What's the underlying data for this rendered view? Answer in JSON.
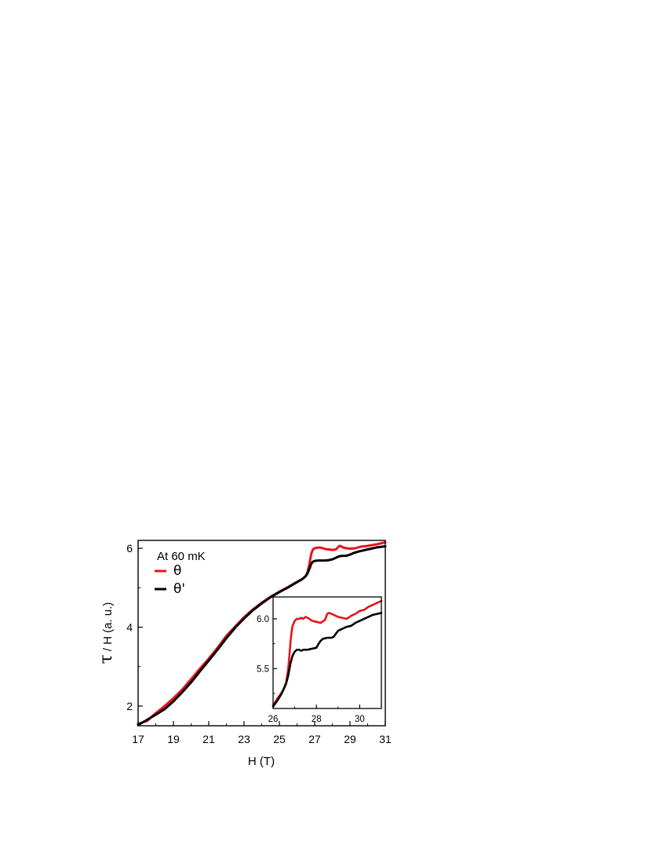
{
  "chart_data": [
    {
      "type": "line",
      "xlabel": "H (T)",
      "ylabel_symbol": "τ",
      "ylabel_rest": " / H (a. u.)",
      "xlim": [
        17,
        31
      ],
      "ylim": [
        1.5,
        6.2
      ],
      "xticks": [
        "17",
        "19",
        "21",
        "23",
        "25",
        "27",
        "29",
        "31"
      ],
      "xtick_values": [
        17,
        19,
        21,
        23,
        25,
        27,
        29,
        31
      ],
      "yticks": [
        "2",
        "4",
        "6"
      ],
      "ytick_values": [
        2,
        4,
        6
      ],
      "annotation": "At 60 mK",
      "legend_placement": "top-left",
      "series": [
        {
          "name": "θ",
          "color": "#e8141c",
          "x": [
            17.0,
            17.5,
            18.0,
            18.5,
            19.0,
            19.5,
            20.0,
            20.5,
            21.0,
            21.5,
            22.0,
            22.5,
            23.0,
            23.5,
            24.0,
            24.5,
            25.0,
            25.5,
            26.0,
            26.3,
            26.5,
            26.6,
            26.7,
            26.8,
            26.9,
            27.0,
            27.2,
            27.4,
            27.6,
            27.8,
            28.0,
            28.2,
            28.4,
            28.5,
            28.6,
            28.8,
            29.0,
            29.3,
            29.6,
            30.0,
            30.5,
            31.0
          ],
          "y": [
            1.55,
            1.62,
            1.82,
            2.0,
            2.2,
            2.42,
            2.68,
            2.95,
            3.2,
            3.48,
            3.78,
            4.02,
            4.25,
            4.45,
            4.62,
            4.77,
            4.9,
            5.02,
            5.15,
            5.22,
            5.3,
            5.4,
            5.6,
            5.85,
            5.97,
            6.0,
            6.02,
            6.01,
            5.98,
            5.97,
            5.96,
            5.97,
            6.06,
            6.05,
            6.02,
            6.0,
            5.99,
            6.0,
            6.04,
            6.06,
            6.1,
            6.15
          ]
        },
        {
          "name": "θ'",
          "color": "#000000",
          "x": [
            17.0,
            17.5,
            18.0,
            18.5,
            19.0,
            19.5,
            20.0,
            20.5,
            21.0,
            21.5,
            22.0,
            22.5,
            23.0,
            23.5,
            24.0,
            24.5,
            25.0,
            25.5,
            26.0,
            26.3,
            26.5,
            26.6,
            26.7,
            26.8,
            26.9,
            27.0,
            27.2,
            27.4,
            27.6,
            27.8,
            28.0,
            28.2,
            28.4,
            28.6,
            28.8,
            29.0,
            29.2,
            29.5,
            30.0,
            30.5,
            31.0
          ],
          "y": [
            1.52,
            1.65,
            1.78,
            1.92,
            2.12,
            2.35,
            2.6,
            2.88,
            3.15,
            3.43,
            3.72,
            3.99,
            4.22,
            4.43,
            4.6,
            4.76,
            4.89,
            5.01,
            5.14,
            5.22,
            5.3,
            5.37,
            5.48,
            5.6,
            5.66,
            5.68,
            5.69,
            5.69,
            5.69,
            5.7,
            5.72,
            5.76,
            5.8,
            5.81,
            5.81,
            5.84,
            5.88,
            5.92,
            5.97,
            6.02,
            6.05
          ]
        }
      ]
    },
    {
      "type": "line",
      "xlim": [
        26,
        31
      ],
      "ylim": [
        5.1,
        6.22
      ],
      "xticks": [
        "26",
        "28",
        "30"
      ],
      "xtick_values": [
        26,
        28,
        30
      ],
      "yticks": [
        "5.5",
        "6.0"
      ],
      "ytick_values": [
        5.5,
        6.0
      ],
      "series": [
        {
          "name": "θ",
          "color": "#e8141c",
          "x": [
            26.0,
            26.2,
            26.4,
            26.5,
            26.6,
            26.7,
            26.75,
            26.8,
            26.85,
            26.9,
            27.0,
            27.1,
            27.2,
            27.3,
            27.4,
            27.5,
            27.6,
            27.8,
            28.0,
            28.2,
            28.4,
            28.5,
            28.6,
            28.8,
            29.0,
            29.2,
            29.4,
            29.6,
            29.8,
            30.0,
            30.2,
            30.4,
            30.6,
            30.8,
            31.0
          ],
          "y": [
            5.13,
            5.2,
            5.26,
            5.3,
            5.36,
            5.5,
            5.62,
            5.76,
            5.86,
            5.93,
            5.98,
            6.0,
            6.0,
            6.01,
            6.0,
            6.02,
            6.01,
            5.98,
            5.97,
            5.96,
            5.99,
            6.05,
            6.06,
            6.04,
            6.02,
            6.01,
            6.0,
            6.03,
            6.05,
            6.08,
            6.09,
            6.12,
            6.14,
            6.16,
            6.18
          ]
        },
        {
          "name": "θ'",
          "color": "#000000",
          "x": [
            26.0,
            26.2,
            26.4,
            26.5,
            26.6,
            26.7,
            26.8,
            26.9,
            27.0,
            27.1,
            27.2,
            27.3,
            27.4,
            27.6,
            27.8,
            28.0,
            28.1,
            28.2,
            28.3,
            28.5,
            28.7,
            28.8,
            28.9,
            29.0,
            29.2,
            29.4,
            29.6,
            29.8,
            30.0,
            30.2,
            30.4,
            30.6,
            30.8,
            31.0
          ],
          "y": [
            5.12,
            5.18,
            5.25,
            5.3,
            5.35,
            5.43,
            5.55,
            5.63,
            5.67,
            5.69,
            5.69,
            5.68,
            5.69,
            5.69,
            5.7,
            5.71,
            5.75,
            5.78,
            5.8,
            5.81,
            5.81,
            5.82,
            5.85,
            5.88,
            5.9,
            5.92,
            5.93,
            5.96,
            5.98,
            6.0,
            6.02,
            6.04,
            6.05,
            6.06
          ]
        }
      ]
    }
  ]
}
